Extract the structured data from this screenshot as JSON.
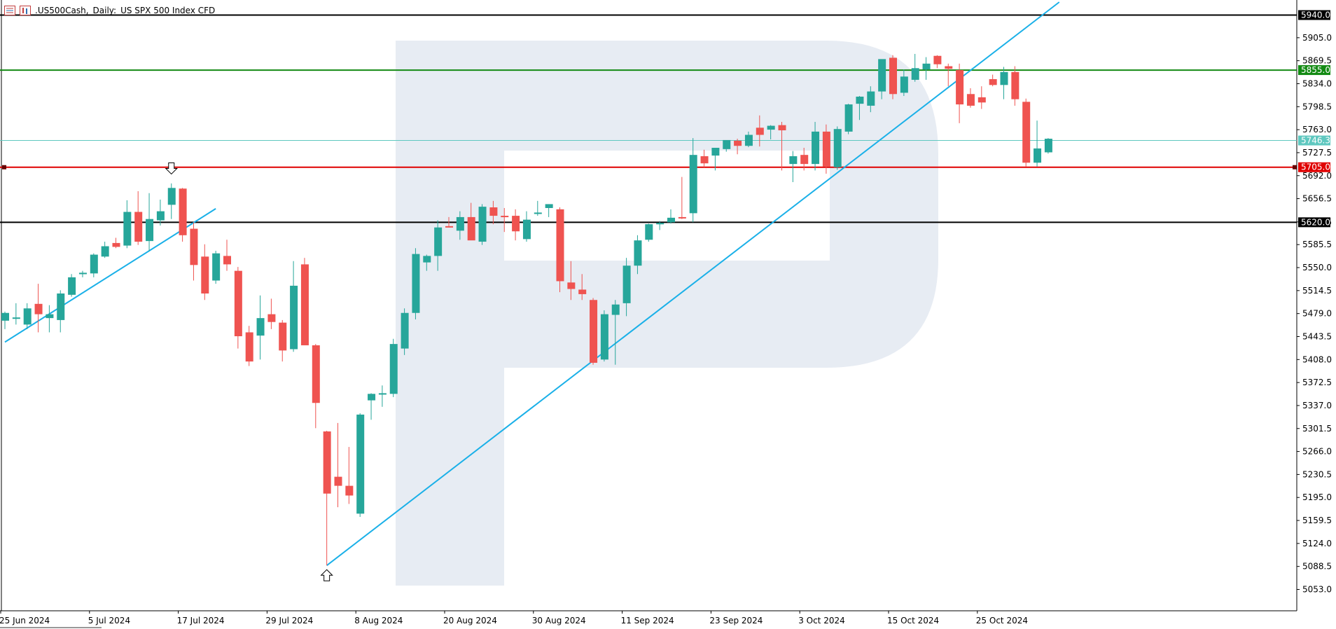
{
  "header": {
    "symbol": ".US500Cash",
    "separator": ",",
    "timeframe": "Daily:",
    "description": "US SPX 500 Index CFD"
  },
  "colors": {
    "bull": "#26a69a",
    "bear": "#ef5350",
    "trendline": "#1ab0e8",
    "support": "#e00000",
    "resistance_green": "#138a13",
    "black_level": "#000000",
    "current_price": "#5fc8c0",
    "watermark": "#e7ecf3"
  },
  "icons": [
    "chart-type-icon",
    "bar-chart-icon",
    "down-arrow-marker-icon",
    "up-arrow-marker-icon",
    "watermark-logo-icon"
  ],
  "chart_data": {
    "type": "candlestick",
    "title": ".US500Cash, Daily: US SPX 500 Index CFD",
    "ylim": [
      5020,
      5960
    ],
    "y_ticks": [
      "5905.0",
      "5869.5",
      "5834.0",
      "5798.5",
      "5763.0",
      "5727.5",
      "5692.0",
      "5656.5",
      "5620.5",
      "5585.5",
      "5550.0",
      "5514.5",
      "5479.0",
      "5443.5",
      "5408.0",
      "5372.5",
      "5337.0",
      "5301.5",
      "5266.0",
      "5230.5",
      "5195.0",
      "5159.5",
      "5124.0",
      "5088.5",
      "5053.0"
    ],
    "x_labels": [
      {
        "label": "25 Jun 2024",
        "index": 0
      },
      {
        "label": "5 Jul 2024",
        "index": 8
      },
      {
        "label": "17 Jul 2024",
        "index": 16
      },
      {
        "label": "29 Jul 2024",
        "index": 24
      },
      {
        "label": "8 Aug 2024",
        "index": 32
      },
      {
        "label": "20 Aug 2024",
        "index": 40
      },
      {
        "label": "30 Aug 2024",
        "index": 48
      },
      {
        "label": "11 Sep 2024",
        "index": 56
      },
      {
        "label": "23 Sep 2024",
        "index": 64
      },
      {
        "label": "3 Oct 2024",
        "index": 72
      },
      {
        "label": "15 Oct 2024",
        "index": 80
      },
      {
        "label": "25 Oct 2024",
        "index": 88
      }
    ],
    "candles": [
      {
        "o": 5468,
        "h": 5482,
        "l": 5455,
        "c": 5480
      },
      {
        "o": 5472,
        "h": 5495,
        "l": 5462,
        "c": 5473
      },
      {
        "o": 5462,
        "h": 5495,
        "l": 5455,
        "c": 5487
      },
      {
        "o": 5494,
        "h": 5525,
        "l": 5450,
        "c": 5478
      },
      {
        "o": 5472,
        "h": 5492,
        "l": 5450,
        "c": 5478
      },
      {
        "o": 5469,
        "h": 5515,
        "l": 5450,
        "c": 5510
      },
      {
        "o": 5508,
        "h": 5540,
        "l": 5505,
        "c": 5535
      },
      {
        "o": 5540,
        "h": 5545,
        "l": 5535,
        "c": 5542
      },
      {
        "o": 5541,
        "h": 5572,
        "l": 5535,
        "c": 5570
      },
      {
        "o": 5567,
        "h": 5590,
        "l": 5565,
        "c": 5583
      },
      {
        "o": 5588,
        "h": 5596,
        "l": 5580,
        "c": 5582
      },
      {
        "o": 5584,
        "h": 5654,
        "l": 5580,
        "c": 5636
      },
      {
        "o": 5636,
        "h": 5668,
        "l": 5585,
        "c": 5590
      },
      {
        "o": 5591,
        "h": 5665,
        "l": 5575,
        "c": 5625
      },
      {
        "o": 5623,
        "h": 5655,
        "l": 5615,
        "c": 5637
      },
      {
        "o": 5647,
        "h": 5680,
        "l": 5625,
        "c": 5673
      },
      {
        "o": 5672,
        "h": 5673,
        "l": 5590,
        "c": 5600
      },
      {
        "o": 5610,
        "h": 5620,
        "l": 5530,
        "c": 5554
      },
      {
        "o": 5567,
        "h": 5586,
        "l": 5500,
        "c": 5510
      },
      {
        "o": 5530,
        "h": 5576,
        "l": 5525,
        "c": 5572
      },
      {
        "o": 5568,
        "h": 5593,
        "l": 5545,
        "c": 5555
      },
      {
        "o": 5545,
        "h": 5551,
        "l": 5425,
        "c": 5444
      },
      {
        "o": 5450,
        "h": 5460,
        "l": 5398,
        "c": 5405
      },
      {
        "o": 5445,
        "h": 5507,
        "l": 5408,
        "c": 5472
      },
      {
        "o": 5478,
        "h": 5502,
        "l": 5455,
        "c": 5466
      },
      {
        "o": 5465,
        "h": 5469,
        "l": 5405,
        "c": 5422
      },
      {
        "o": 5424,
        "h": 5560,
        "l": 5420,
        "c": 5522
      },
      {
        "o": 5555,
        "h": 5565,
        "l": 5435,
        "c": 5430
      },
      {
        "o": 5430,
        "h": 5432,
        "l": 5302,
        "c": 5341
      },
      {
        "o": 5297,
        "h": 5298,
        "l": 5090,
        "c": 5201
      },
      {
        "o": 5227,
        "h": 5310,
        "l": 5180,
        "c": 5213
      },
      {
        "o": 5213,
        "h": 5273,
        "l": 5185,
        "c": 5198
      },
      {
        "o": 5170,
        "h": 5325,
        "l": 5165,
        "c": 5323
      },
      {
        "o": 5345,
        "h": 5356,
        "l": 5315,
        "c": 5355
      },
      {
        "o": 5355,
        "h": 5368,
        "l": 5335,
        "c": 5356
      },
      {
        "o": 5355,
        "h": 5440,
        "l": 5350,
        "c": 5432
      },
      {
        "o": 5425,
        "h": 5487,
        "l": 5415,
        "c": 5480
      },
      {
        "o": 5480,
        "h": 5580,
        "l": 5470,
        "c": 5571
      },
      {
        "o": 5558,
        "h": 5570,
        "l": 5545,
        "c": 5568
      },
      {
        "o": 5568,
        "h": 5623,
        "l": 5545,
        "c": 5612
      },
      {
        "o": 5614,
        "h": 5628,
        "l": 5612,
        "c": 5613
      },
      {
        "o": 5607,
        "h": 5637,
        "l": 5593,
        "c": 5628
      },
      {
        "o": 5628,
        "h": 5650,
        "l": 5595,
        "c": 5592
      },
      {
        "o": 5590,
        "h": 5648,
        "l": 5585,
        "c": 5644
      },
      {
        "o": 5643,
        "h": 5653,
        "l": 5617,
        "c": 5630
      },
      {
        "o": 5630,
        "h": 5642,
        "l": 5605,
        "c": 5629
      },
      {
        "o": 5630,
        "h": 5640,
        "l": 5592,
        "c": 5606
      },
      {
        "o": 5594,
        "h": 5637,
        "l": 5590,
        "c": 5624
      },
      {
        "o": 5635,
        "h": 5653,
        "l": 5630,
        "c": 5635
      },
      {
        "o": 5642,
        "h": 5648,
        "l": 5628,
        "c": 5648
      },
      {
        "o": 5640,
        "h": 5643,
        "l": 5512,
        "c": 5529
      },
      {
        "o": 5527,
        "h": 5560,
        "l": 5500,
        "c": 5517
      },
      {
        "o": 5516,
        "h": 5540,
        "l": 5500,
        "c": 5509
      },
      {
        "o": 5500,
        "h": 5503,
        "l": 5400,
        "c": 5403
      },
      {
        "o": 5408,
        "h": 5484,
        "l": 5405,
        "c": 5478
      },
      {
        "o": 5477,
        "h": 5500,
        "l": 5400,
        "c": 5493
      },
      {
        "o": 5495,
        "h": 5565,
        "l": 5475,
        "c": 5553
      },
      {
        "o": 5553,
        "h": 5600,
        "l": 5540,
        "c": 5592
      },
      {
        "o": 5593,
        "h": 5618,
        "l": 5590,
        "c": 5617
      },
      {
        "o": 5617,
        "h": 5622,
        "l": 5608,
        "c": 5619
      },
      {
        "o": 5620,
        "h": 5640,
        "l": 5618,
        "c": 5627
      },
      {
        "o": 5628,
        "h": 5690,
        "l": 5625,
        "c": 5627
      },
      {
        "o": 5634,
        "h": 5750,
        "l": 5620,
        "c": 5724
      },
      {
        "o": 5722,
        "h": 5732,
        "l": 5705,
        "c": 5711
      },
      {
        "o": 5723,
        "h": 5735,
        "l": 5700,
        "c": 5735
      },
      {
        "o": 5733,
        "h": 5745,
        "l": 5729,
        "c": 5747
      },
      {
        "o": 5746,
        "h": 5749,
        "l": 5725,
        "c": 5738
      },
      {
        "o": 5738,
        "h": 5760,
        "l": 5736,
        "c": 5755
      },
      {
        "o": 5766,
        "h": 5785,
        "l": 5737,
        "c": 5755
      },
      {
        "o": 5763,
        "h": 5770,
        "l": 5748,
        "c": 5769
      },
      {
        "o": 5770,
        "h": 5775,
        "l": 5700,
        "c": 5762
      },
      {
        "o": 5710,
        "h": 5730,
        "l": 5682,
        "c": 5722
      },
      {
        "o": 5724,
        "h": 5735,
        "l": 5700,
        "c": 5710
      },
      {
        "o": 5710,
        "h": 5775,
        "l": 5700,
        "c": 5760
      },
      {
        "o": 5760,
        "h": 5771,
        "l": 5695,
        "c": 5706
      },
      {
        "o": 5705,
        "h": 5768,
        "l": 5701,
        "c": 5764
      },
      {
        "o": 5760,
        "h": 5803,
        "l": 5756,
        "c": 5802
      },
      {
        "o": 5803,
        "h": 5815,
        "l": 5778,
        "c": 5814
      },
      {
        "o": 5800,
        "h": 5830,
        "l": 5790,
        "c": 5822
      },
      {
        "o": 5822,
        "h": 5869,
        "l": 5810,
        "c": 5872
      },
      {
        "o": 5874,
        "h": 5878,
        "l": 5810,
        "c": 5818
      },
      {
        "o": 5820,
        "h": 5856,
        "l": 5815,
        "c": 5845
      },
      {
        "o": 5840,
        "h": 5880,
        "l": 5837,
        "c": 5858
      },
      {
        "o": 5856,
        "h": 5875,
        "l": 5840,
        "c": 5865
      },
      {
        "o": 5877,
        "h": 5878,
        "l": 5858,
        "c": 5864
      },
      {
        "o": 5861,
        "h": 5865,
        "l": 5830,
        "c": 5857
      },
      {
        "o": 5855,
        "h": 5865,
        "l": 5773,
        "c": 5802
      },
      {
        "o": 5818,
        "h": 5827,
        "l": 5797,
        "c": 5800
      },
      {
        "o": 5813,
        "h": 5830,
        "l": 5795,
        "c": 5805
      },
      {
        "o": 5841,
        "h": 5848,
        "l": 5830,
        "c": 5832
      },
      {
        "o": 5832,
        "h": 5860,
        "l": 5810,
        "c": 5852
      },
      {
        "o": 5852,
        "h": 5861,
        "l": 5800,
        "c": 5810
      },
      {
        "o": 5806,
        "h": 5811,
        "l": 5706,
        "c": 5712
      },
      {
        "o": 5712,
        "h": 5777,
        "l": 5706,
        "c": 5734
      },
      {
        "o": 5728,
        "h": 5750,
        "l": 5726,
        "c": 5749
      }
    ],
    "levels": [
      {
        "price": 5940.0,
        "label": "5940.0",
        "color": "black"
      },
      {
        "price": 5855.0,
        "label": "5855.0",
        "color": "green"
      },
      {
        "price": 5746.3,
        "label": "5746.3",
        "color": "current"
      },
      {
        "price": 5705.0,
        "label": "5705.0",
        "color": "red"
      },
      {
        "price": 5620.0,
        "label": "5620.0",
        "color": "black"
      }
    ],
    "trendlines": [
      {
        "name": "rising-support",
        "from": {
          "index": 29,
          "price": 5090
        },
        "to": {
          "index": 95,
          "price": 5960
        }
      },
      {
        "name": "early-uptrend",
        "from": {
          "index": 0,
          "price": 5435
        },
        "to": {
          "index": 19,
          "price": 5641
        }
      }
    ],
    "markers": [
      {
        "type": "down-arrow",
        "index": 15,
        "price": 5675
      },
      {
        "type": "up-arrow",
        "index": 29,
        "price": 5090
      }
    ]
  }
}
